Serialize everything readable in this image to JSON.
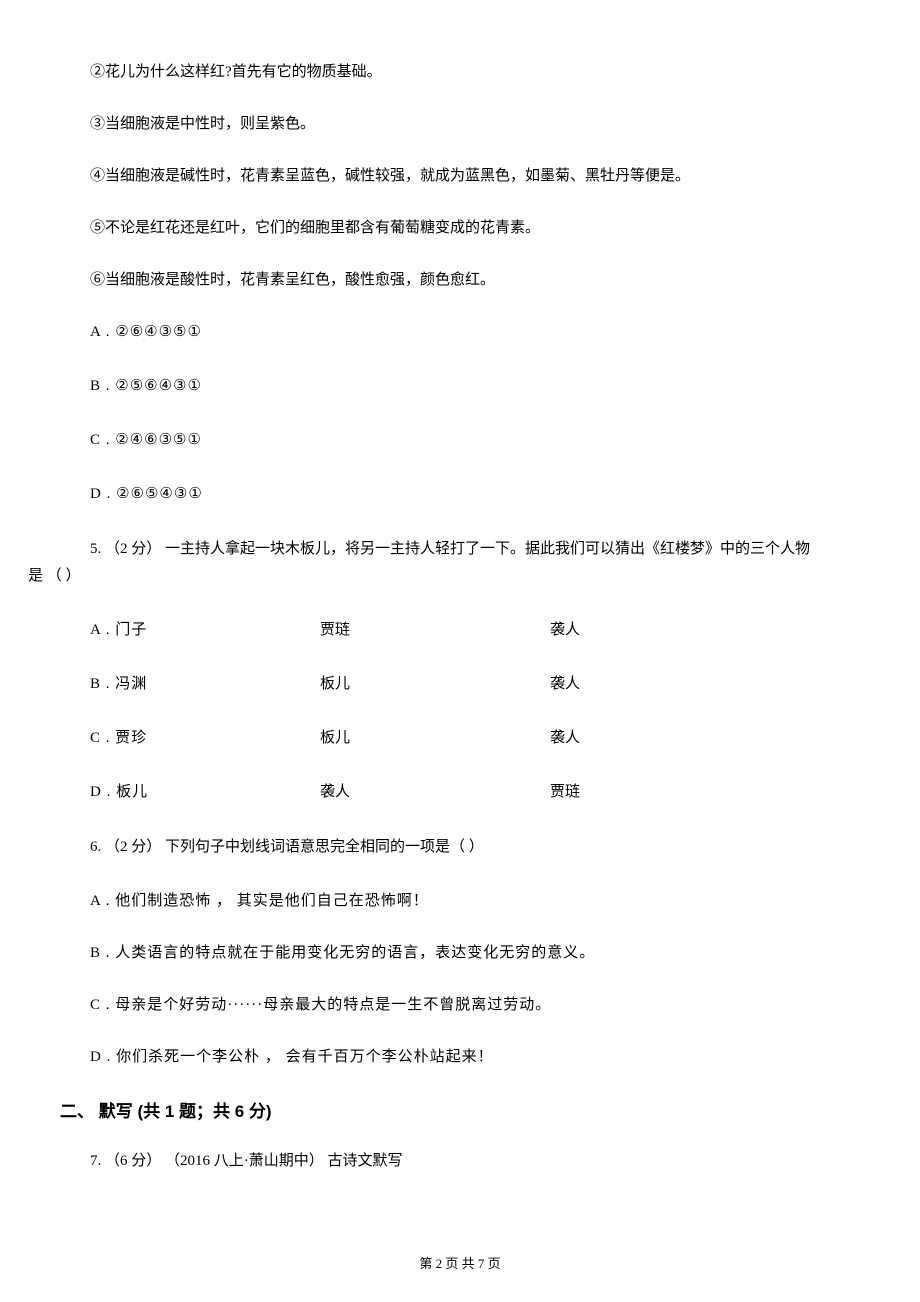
{
  "stmts": {
    "s2": "②花儿为什么这样红?首先有它的物质基础。",
    "s3": "③当细胞液是中性时，则呈紫色。",
    "s4": "④当细胞液是碱性时，花青素呈蓝色，碱性较强，就成为蓝黑色，如墨菊、黑牡丹等便是。",
    "s5": "⑤不论是红花还是红叶，它们的细胞里都含有葡萄糖变成的花青素。",
    "s6": "⑥当细胞液是酸性时，花青素呈红色，酸性愈强，颜色愈红。"
  },
  "q4_choices": {
    "a": "A . ②⑥④③⑤①",
    "b": "B . ②⑤⑥④③①",
    "c": "C . ②④⑥③⑤①",
    "d": "D . ②⑥⑤④③①"
  },
  "q5": {
    "line1": "5. （2 分） 一主持人拿起一块木板儿，将另一主持人轻打了一下。据此我们可以猜出《红楼梦》中的三个人物",
    "line2": "是     （     ）",
    "choices": {
      "a": {
        "c1": "A . 门子",
        "c2": "贾琏",
        "c3": "袭人"
      },
      "b": {
        "c1": "B . 冯渊",
        "c2": "板儿",
        "c3": "袭人"
      },
      "c": {
        "c1": "C . 贾珍",
        "c2": "板儿",
        "c3": "袭人"
      },
      "d": {
        "c1": "D . 板儿",
        "c2": "袭人",
        "c3": "贾琏"
      }
    }
  },
  "q6": {
    "stem": "6.  （2 分）  下列句子中划线词语意思完全相同的一项是（     ）",
    "a": "A . 他们制造恐怖 ，  其实是他们自己在恐怖啊！",
    "b": "B . 人类语言的特点就在于能用变化无穷的语言，表达变化无穷的意义。",
    "c": "C . 母亲是个好劳动······母亲最大的特点是一生不曾脱离过劳动。",
    "d": "D . 你们杀死一个李公朴 ，  会有千百万个李公朴站起来！"
  },
  "section2": {
    "heading": "二、 默写 (共 1 题；共 6 分)",
    "q7": "7.  （6 分） （2016 八上·萧山期中） 古诗文默写"
  },
  "footer": "第 2 页 共 7 页"
}
